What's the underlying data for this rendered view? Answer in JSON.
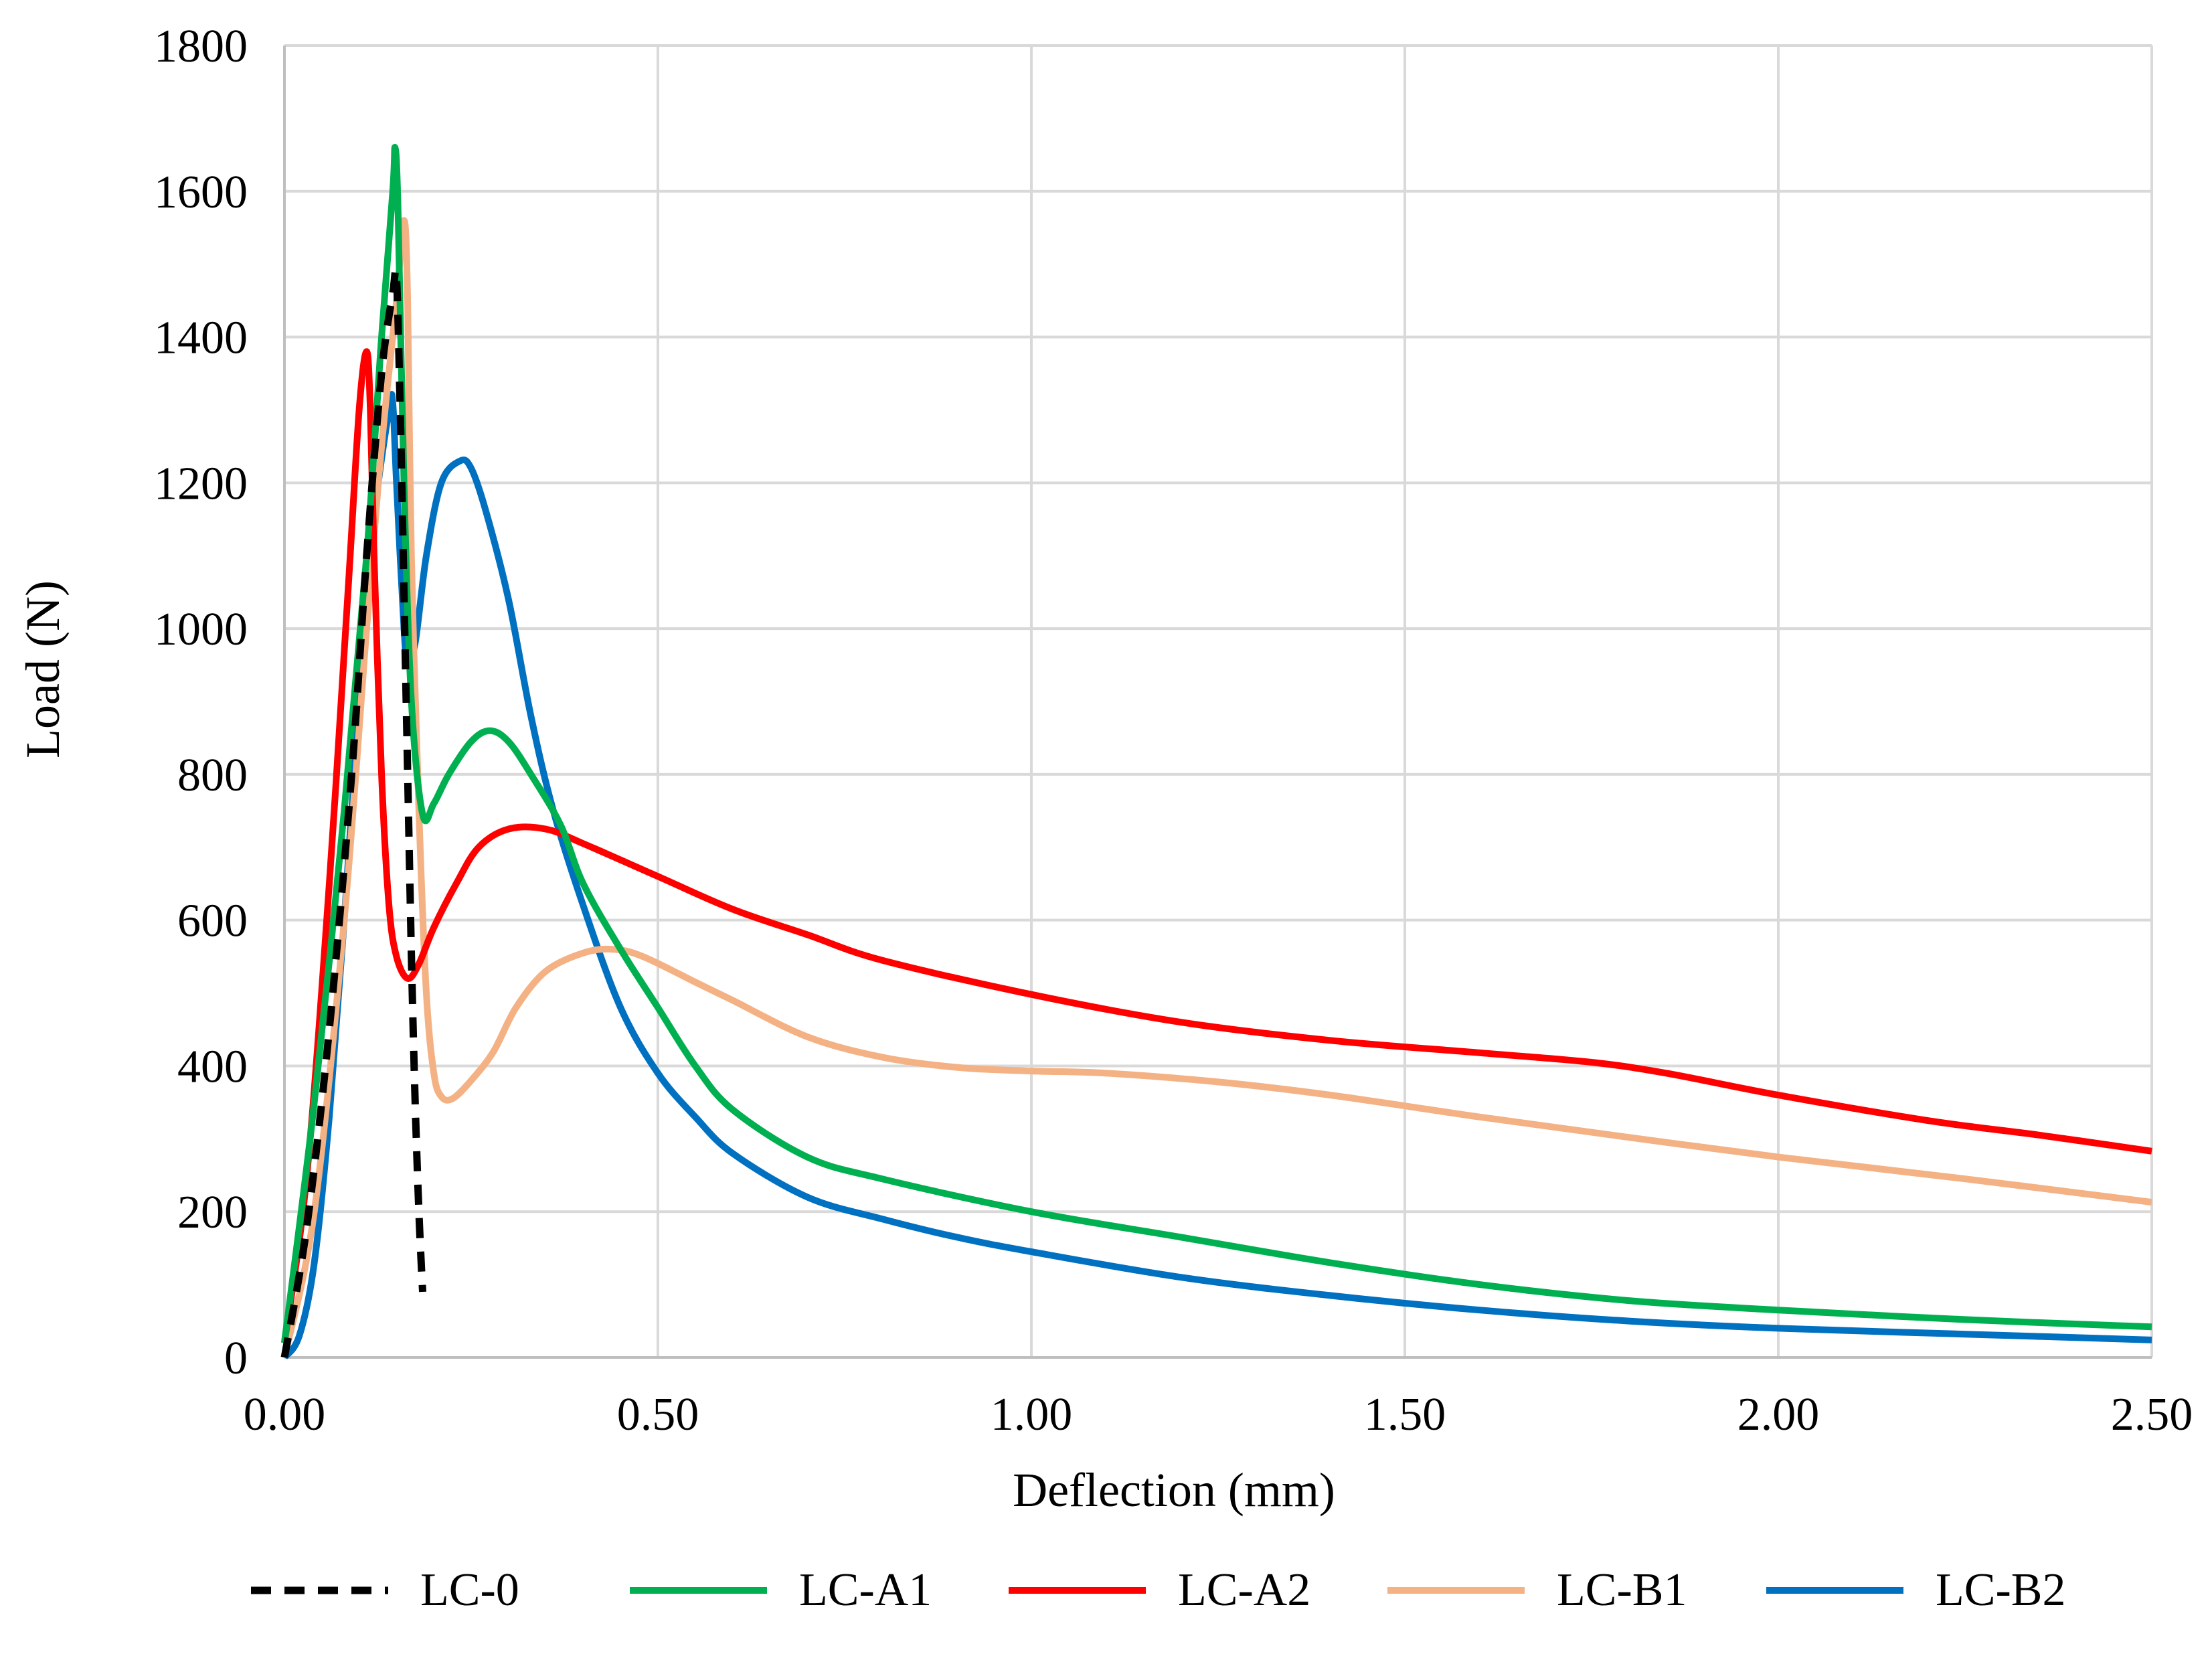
{
  "chart_data": {
    "type": "line",
    "title": "",
    "xlabel": "Deflection (mm)",
    "ylabel": "Load (N)",
    "xlim": [
      0,
      2.5
    ],
    "ylim": [
      0,
      1800
    ],
    "xticks": [
      0,
      0.5,
      1.0,
      1.5,
      2.0,
      2.5
    ],
    "xtick_labels": [
      "0.00",
      "0.50",
      "1.00",
      "1.50",
      "2.00",
      "2.50"
    ],
    "yticks": [
      0,
      200,
      400,
      600,
      800,
      1000,
      1200,
      1400,
      1600,
      1800
    ],
    "ytick_labels": [
      "0",
      "200",
      "400",
      "600",
      "800",
      "1000",
      "1200",
      "1400",
      "1600",
      "1800"
    ],
    "grid": true,
    "legend_position": "bottom",
    "series": [
      {
        "name": "LC-0",
        "color": "#000000",
        "dash": "dashed",
        "points": [
          [
            0,
            0
          ],
          [
            0.03,
            180
          ],
          [
            0.06,
            450
          ],
          [
            0.09,
            800
          ],
          [
            0.11,
            1100
          ],
          [
            0.13,
            1350
          ],
          [
            0.145,
            1460
          ],
          [
            0.15,
            1480
          ],
          [
            0.155,
            1300
          ],
          [
            0.16,
            1050
          ],
          [
            0.165,
            800
          ],
          [
            0.17,
            550
          ],
          [
            0.175,
            350
          ],
          [
            0.18,
            200
          ],
          [
            0.185,
            90
          ]
        ]
      },
      {
        "name": "LC-A1",
        "color": "#00B050",
        "dash": "solid",
        "points": [
          [
            0,
            20
          ],
          [
            0.04,
            350
          ],
          [
            0.08,
            750
          ],
          [
            0.11,
            1100
          ],
          [
            0.13,
            1400
          ],
          [
            0.145,
            1600
          ],
          [
            0.148,
            1660
          ],
          [
            0.152,
            1580
          ],
          [
            0.16,
            1200
          ],
          [
            0.17,
            900
          ],
          [
            0.185,
            745
          ],
          [
            0.2,
            760
          ],
          [
            0.22,
            800
          ],
          [
            0.25,
            845
          ],
          [
            0.275,
            860
          ],
          [
            0.3,
            845
          ],
          [
            0.33,
            800
          ],
          [
            0.37,
            730
          ],
          [
            0.4,
            650
          ],
          [
            0.45,
            560
          ],
          [
            0.5,
            480
          ],
          [
            0.55,
            400
          ],
          [
            0.6,
            340
          ],
          [
            0.7,
            275
          ],
          [
            0.8,
            245
          ],
          [
            1.0,
            200
          ],
          [
            1.2,
            165
          ],
          [
            1.4,
            130
          ],
          [
            1.6,
            100
          ],
          [
            1.8,
            78
          ],
          [
            2.0,
            65
          ],
          [
            2.25,
            52
          ],
          [
            2.5,
            42
          ]
        ]
      },
      {
        "name": "LC-A2",
        "color": "#FF0000",
        "dash": "solid",
        "points": [
          [
            0,
            20
          ],
          [
            0.03,
            250
          ],
          [
            0.06,
            650
          ],
          [
            0.085,
            1050
          ],
          [
            0.1,
            1300
          ],
          [
            0.11,
            1380
          ],
          [
            0.115,
            1300
          ],
          [
            0.12,
            1100
          ],
          [
            0.13,
            800
          ],
          [
            0.14,
            620
          ],
          [
            0.15,
            550
          ],
          [
            0.165,
            520
          ],
          [
            0.18,
            540
          ],
          [
            0.2,
            590
          ],
          [
            0.23,
            650
          ],
          [
            0.26,
            700
          ],
          [
            0.3,
            725
          ],
          [
            0.35,
            725
          ],
          [
            0.4,
            705
          ],
          [
            0.5,
            660
          ],
          [
            0.6,
            615
          ],
          [
            0.7,
            580
          ],
          [
            0.8,
            545
          ],
          [
            1.0,
            498
          ],
          [
            1.2,
            460
          ],
          [
            1.4,
            435
          ],
          [
            1.6,
            418
          ],
          [
            1.75,
            405
          ],
          [
            1.85,
            390
          ],
          [
            2.0,
            360
          ],
          [
            2.2,
            325
          ],
          [
            2.35,
            305
          ],
          [
            2.5,
            283
          ]
        ]
      },
      {
        "name": "LC-B1",
        "color": "#F4B183",
        "dash": "solid",
        "points": [
          [
            0,
            0
          ],
          [
            0.04,
            200
          ],
          [
            0.08,
            600
          ],
          [
            0.11,
            1000
          ],
          [
            0.13,
            1250
          ],
          [
            0.15,
            1450
          ],
          [
            0.16,
            1560
          ],
          [
            0.165,
            1450
          ],
          [
            0.17,
            1100
          ],
          [
            0.18,
            750
          ],
          [
            0.19,
            500
          ],
          [
            0.2,
            390
          ],
          [
            0.21,
            358
          ],
          [
            0.225,
            355
          ],
          [
            0.25,
            380
          ],
          [
            0.28,
            420
          ],
          [
            0.31,
            480
          ],
          [
            0.35,
            530
          ],
          [
            0.4,
            555
          ],
          [
            0.44,
            560
          ],
          [
            0.48,
            550
          ],
          [
            0.55,
            515
          ],
          [
            0.6,
            490
          ],
          [
            0.7,
            440
          ],
          [
            0.8,
            412
          ],
          [
            0.9,
            398
          ],
          [
            1.0,
            393
          ],
          [
            1.1,
            390
          ],
          [
            1.25,
            378
          ],
          [
            1.4,
            360
          ],
          [
            1.6,
            330
          ],
          [
            1.8,
            302
          ],
          [
            2.0,
            275
          ],
          [
            2.25,
            245
          ],
          [
            2.5,
            213
          ]
        ]
      },
      {
        "name": "LC-B2",
        "color": "#0070C0",
        "dash": "solid",
        "points": [
          [
            0,
            0
          ],
          [
            0.02,
            30
          ],
          [
            0.04,
            130
          ],
          [
            0.06,
            330
          ],
          [
            0.08,
            600
          ],
          [
            0.1,
            900
          ],
          [
            0.12,
            1150
          ],
          [
            0.14,
            1300
          ],
          [
            0.145,
            1310
          ],
          [
            0.15,
            1200
          ],
          [
            0.16,
            1000
          ],
          [
            0.165,
            960
          ],
          [
            0.175,
            980
          ],
          [
            0.19,
            1100
          ],
          [
            0.21,
            1200
          ],
          [
            0.235,
            1230
          ],
          [
            0.25,
            1220
          ],
          [
            0.27,
            1160
          ],
          [
            0.3,
            1040
          ],
          [
            0.33,
            880
          ],
          [
            0.36,
            750
          ],
          [
            0.4,
            620
          ],
          [
            0.45,
            480
          ],
          [
            0.5,
            390
          ],
          [
            0.55,
            330
          ],
          [
            0.6,
            280
          ],
          [
            0.7,
            220
          ],
          [
            0.8,
            190
          ],
          [
            0.9,
            165
          ],
          [
            1.0,
            145
          ],
          [
            1.2,
            110
          ],
          [
            1.4,
            85
          ],
          [
            1.6,
            65
          ],
          [
            1.8,
            50
          ],
          [
            2.0,
            40
          ],
          [
            2.25,
            32
          ],
          [
            2.5,
            24
          ]
        ]
      }
    ]
  }
}
